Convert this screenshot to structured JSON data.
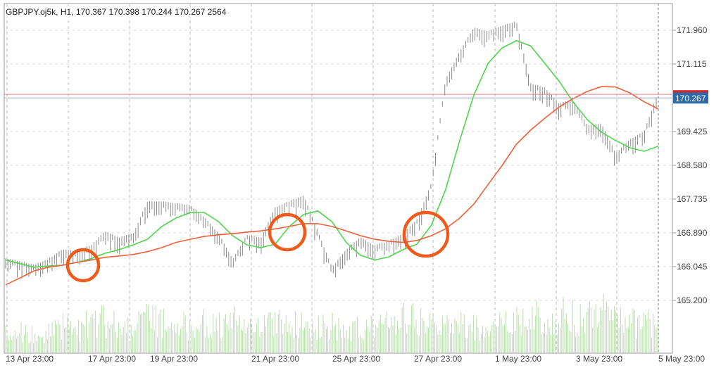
{
  "header": {
    "title": "GBPJPY.oj5k, H1, 170.367 170.398 170.244 170.267 2564"
  },
  "chart_data": {
    "type": "line",
    "title": "GBPJPY.oj5k, H1, 170.367 170.398 170.244 170.267 2564",
    "symbol": "GBPJPY.oj5k",
    "timeframe": "H1",
    "ohlcv_last": {
      "open": 170.367,
      "high": 170.398,
      "low": 170.244,
      "close": 170.267,
      "volume": 2564
    },
    "current_price_label": "170.267",
    "ylim": [
      164.6,
      172.5
    ],
    "y_ticks": [
      "171.960",
      "171.115",
      "169.425",
      "168.580",
      "167.735",
      "166.890",
      "166.045",
      "165.200"
    ],
    "x_ticks": [
      "13 Apr 23:00",
      "17 Apr 23:00",
      "19 Apr 23:00",
      "21 Apr 23:00",
      "25 Apr 23:00",
      "27 Apr 23:00",
      "1 May 23:00",
      "3 May 23:00",
      "5 May 23:00"
    ],
    "grid": true,
    "series": [
      {
        "type": "bars",
        "color": "#8a8a8a",
        "values": [
          166.12,
          166.05,
          165.96,
          166.1,
          166.35,
          166.3,
          166.45,
          166.8,
          166.65,
          166.75,
          167.55,
          167.55,
          167.5,
          167.45,
          167.15,
          166.75,
          166.1,
          166.7,
          166.65,
          167.4,
          167.55,
          167.7,
          166.8,
          165.9,
          166.35,
          166.65,
          166.45,
          166.55,
          166.75,
          167.1,
          168.0,
          170.6,
          171.3,
          171.9,
          171.8,
          171.95,
          172.05,
          170.5,
          170.4,
          170.0,
          170.1,
          169.45,
          169.5,
          168.75,
          169.1,
          169.3,
          170.3
        ]
      },
      {
        "type": "line",
        "color": "#4cd64c",
        "values": [
          166.21,
          166.12,
          166.03,
          166.06,
          166.08,
          166.15,
          166.24,
          166.38,
          166.47,
          166.59,
          166.73,
          167.05,
          167.26,
          167.4,
          167.4,
          167.17,
          166.82,
          166.59,
          166.52,
          166.61,
          167.05,
          167.35,
          167.44,
          167.17,
          166.65,
          166.33,
          166.21,
          166.29,
          166.47,
          166.61,
          167.08,
          167.96,
          169.2,
          170.34,
          171.13,
          171.52,
          171.7,
          171.57,
          171.13,
          170.69,
          170.16,
          169.72,
          169.41,
          169.2,
          169.02,
          168.93,
          169.06
        ]
      },
      {
        "type": "line",
        "color": "#f0603a",
        "values": [
          165.59,
          165.76,
          165.94,
          166.03,
          166.08,
          166.15,
          166.21,
          166.28,
          166.31,
          166.35,
          166.42,
          166.52,
          166.65,
          166.73,
          166.8,
          166.84,
          166.87,
          166.91,
          166.94,
          166.99,
          167.05,
          167.12,
          167.12,
          167.05,
          166.94,
          166.82,
          166.73,
          166.68,
          166.65,
          166.7,
          166.82,
          166.99,
          167.26,
          167.61,
          168.1,
          168.58,
          169.11,
          169.46,
          169.76,
          170.04,
          170.25,
          170.43,
          170.55,
          170.54,
          170.39,
          170.17,
          169.99
        ]
      }
    ],
    "volume": {
      "color": "#b9dcae",
      "values": [
        40,
        35,
        30,
        38,
        45,
        42,
        50,
        55,
        48,
        40,
        60,
        55,
        50,
        45,
        52,
        48,
        58,
        40,
        42,
        50,
        55,
        48,
        45,
        52,
        40,
        45,
        50,
        55,
        60,
        58,
        48,
        50,
        52,
        45,
        42,
        50,
        55,
        60,
        58,
        65,
        62,
        70,
        75,
        55,
        50,
        52,
        48
      ]
    },
    "annotations": {
      "color": "#f05a1a",
      "count": 3
    }
  }
}
